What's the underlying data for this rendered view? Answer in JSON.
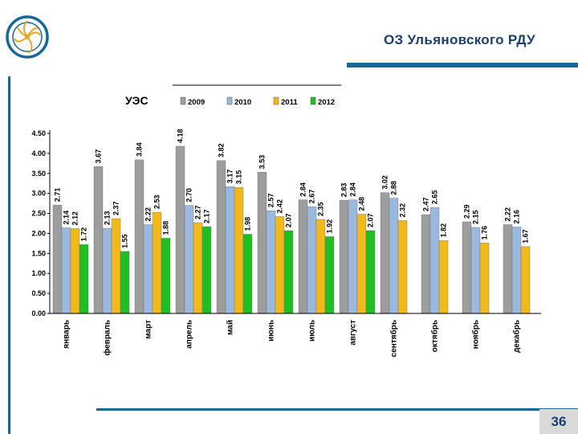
{
  "header": {
    "title": "ОЗ Ульяновского  РДУ"
  },
  "footer": {
    "page_number": "36"
  },
  "colors": {
    "brand_blue": "#16679a",
    "title_blue": "#1a3f74",
    "series": [
      "#9d9d9d",
      "#9bb8de",
      "#f1b91a",
      "#1fbe23"
    ]
  },
  "chart_data": {
    "type": "bar",
    "title": "УЭС",
    "categories": [
      "январь",
      "февраль",
      "март",
      "апрель",
      "май",
      "июнь",
      "июль",
      "август",
      "сентябрь",
      "октябрь",
      "ноябрь",
      "декабрь"
    ],
    "series": [
      {
        "name": "2009",
        "values": [
          2.71,
          3.67,
          3.84,
          4.18,
          3.82,
          3.53,
          2.84,
          2.83,
          3.02,
          2.47,
          2.29,
          2.22
        ]
      },
      {
        "name": "2010",
        "values": [
          2.14,
          2.13,
          2.22,
          2.7,
          3.17,
          2.57,
          2.67,
          2.84,
          2.88,
          2.65,
          2.15,
          2.16
        ]
      },
      {
        "name": "2011",
        "values": [
          2.12,
          2.37,
          2.53,
          2.27,
          3.15,
          2.42,
          2.35,
          2.48,
          2.32,
          1.82,
          1.76,
          1.67
        ]
      },
      {
        "name": "2012",
        "values": [
          1.72,
          1.55,
          1.88,
          2.17,
          1.98,
          2.07,
          1.92,
          2.07,
          null,
          null,
          null,
          null
        ]
      }
    ],
    "data_labels": [
      [
        "2.71",
        "3.67",
        "3.84",
        "4.18",
        "3.82",
        "3.53",
        "2.84",
        "2.83",
        "3.02",
        "2.47",
        "2.29",
        "2.22"
      ],
      [
        "2.14",
        "2.13",
        "2.22",
        "2.70",
        "3.17",
        "2.57",
        "2.67",
        "2.84",
        "2.88",
        "2.65",
        "2.15",
        "2.16"
      ],
      [
        "2.12",
        "2.37",
        "2.53",
        "2.27",
        "3.15",
        "2.42",
        "2.35",
        "2.48",
        "2.32",
        "1.82",
        "1.76",
        "1.67"
      ],
      [
        "1.72",
        "1.55",
        "1.88",
        "2.17",
        "1.98",
        "2.07",
        "1.92",
        "2.07",
        null,
        null,
        null,
        null
      ]
    ],
    "y_ticks": [
      "0.00",
      "0.50",
      "1.00",
      "1.50",
      "2.00",
      "2.50",
      "3.00",
      "3.50",
      "4.00",
      "4.50"
    ],
    "ylim": [
      0,
      4.5
    ],
    "grid": false,
    "legend_position": "top"
  }
}
